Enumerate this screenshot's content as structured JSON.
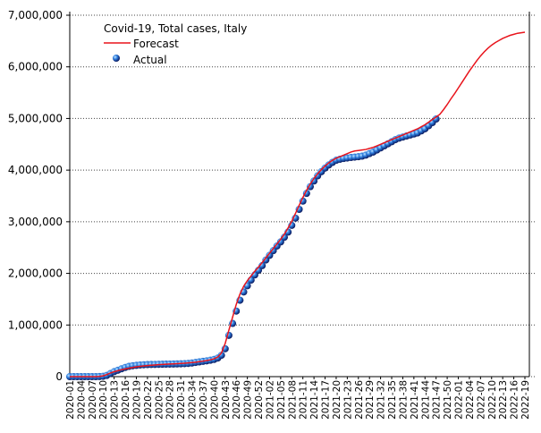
{
  "chart_data": {
    "type": "line",
    "title": "Covid-19, Total cases, Italy",
    "categories": [
      "2020-01",
      null,
      null,
      "2020-04",
      null,
      null,
      "2020-07",
      null,
      null,
      "2020-10",
      null,
      null,
      "2020-13",
      null,
      null,
      "2020-16",
      null,
      null,
      "2020-19",
      null,
      null,
      "2020-22",
      null,
      null,
      "2020-25",
      null,
      null,
      "2020-28",
      null,
      null,
      "2020-31",
      null,
      null,
      "2020-34",
      null,
      null,
      "2020-37",
      null,
      null,
      "2020-40",
      null,
      null,
      "2020-43",
      null,
      null,
      "2020-46",
      null,
      null,
      "2020-49",
      null,
      null,
      "2020-52",
      null,
      null,
      "2021-02",
      null,
      null,
      "2021-05",
      null,
      null,
      "2021-08",
      null,
      null,
      "2021-11",
      null,
      null,
      "2021-14",
      null,
      null,
      "2021-17",
      null,
      null,
      "2021-20",
      null,
      null,
      "2021-23",
      null,
      null,
      "2021-26",
      null,
      null,
      "2021-29",
      null,
      null,
      "2021-32",
      null,
      null,
      "2021-35",
      null,
      null,
      "2021-38",
      null,
      null,
      "2021-41",
      null,
      null,
      "2021-44",
      null,
      null,
      "2021-47",
      null,
      null,
      "2021-50",
      null,
      null,
      "2022-01",
      null,
      null,
      "2022-04",
      null,
      null,
      "2022-07",
      null,
      null,
      "2022-10",
      null,
      null,
      "2022-13",
      null,
      null,
      "2022-16",
      null,
      null,
      "2022-19"
    ],
    "series": [
      {
        "name": "Forecast",
        "color": "#e8141c",
        "style": "line",
        "values": [
          0,
          0,
          0,
          0,
          0,
          0,
          0,
          0,
          5000,
          15000,
          40000,
          70000,
          95000,
          115000,
          135000,
          150000,
          165000,
          178000,
          190000,
          200000,
          208000,
          215000,
          221000,
          226000,
          231000,
          236000,
          240000,
          244000,
          248000,
          252000,
          256000,
          261000,
          266000,
          272000,
          280000,
          290000,
          300000,
          312000,
          326000,
          345000,
          380000,
          460000,
          640000,
          900000,
          1150000,
          1400000,
          1600000,
          1750000,
          1860000,
          1950000,
          2040000,
          2120000,
          2210000,
          2300000,
          2390000,
          2480000,
          2570000,
          2660000,
          2760000,
          2880000,
          3010000,
          3160000,
          3320000,
          3470000,
          3610000,
          3730000,
          3840000,
          3930000,
          4010000,
          4080000,
          4140000,
          4190000,
          4230000,
          4260000,
          4290000,
          4320000,
          4350000,
          4370000,
          4380000,
          4390000,
          4400000,
          4420000,
          4440000,
          4470000,
          4500000,
          4530000,
          4560000,
          4590000,
          4620000,
          4650000,
          4680000,
          4710000,
          4740000,
          4770000,
          4800000,
          4840000,
          4880000,
          4930000,
          4980000,
          5030000,
          5080000,
          5170000,
          5270000,
          5380000,
          5480000,
          5590000,
          5700000,
          5810000,
          5920000,
          6020000,
          6120000,
          6210000,
          6290000,
          6360000,
          6420000,
          6470000,
          6510000,
          6550000,
          6580000,
          6610000,
          6630000,
          6650000,
          6660000,
          6670000
        ]
      },
      {
        "name": "Actual",
        "color": "#1f5fd0",
        "style": "dots",
        "values": [
          0,
          0,
          0,
          0,
          0,
          0,
          0,
          0,
          1700,
          7000,
          24000,
          60000,
          97000,
          124000,
          152000,
          178000,
          199000,
          211000,
          219000,
          226000,
          230000,
          233000,
          235000,
          237000,
          239000,
          240000,
          242000,
          243000,
          245000,
          247000,
          249000,
          252000,
          256000,
          264000,
          276000,
          286000,
          296000,
          306000,
          318000,
          333000,
          360000,
          414000,
          540000,
          800000,
          1030000,
          1270000,
          1480000,
          1640000,
          1760000,
          1870000,
          1970000,
          2060000,
          2150000,
          2260000,
          2350000,
          2440000,
          2530000,
          2610000,
          2700000,
          2800000,
          2930000,
          3070000,
          3240000,
          3400000,
          3550000,
          3680000,
          3790000,
          3890000,
          3970000,
          4040000,
          4100000,
          4150000,
          4190000,
          4210000,
          4225000,
          4235000,
          4245000,
          4252000,
          4260000,
          4270000,
          4290000,
          4320000,
          4350000,
          4390000,
          4430000,
          4470000,
          4510000,
          4550000,
          4590000,
          4620000,
          4640000,
          4660000,
          4680000,
          4700000,
          4720000,
          4760000,
          4800000,
          4860000,
          4920000,
          4990000,
          null,
          null,
          null,
          null,
          null,
          null,
          null,
          null,
          null,
          null,
          null,
          null,
          null,
          null,
          null,
          null,
          null,
          null,
          null,
          null,
          null,
          null,
          null,
          null
        ]
      }
    ],
    "ylim": [
      0,
      7000000
    ],
    "yticks": [
      0,
      {
        "value": 1000000,
        "label": "1,000,000"
      },
      {
        "value": 2000000,
        "label": "2,000,000"
      },
      {
        "value": 3000000,
        "label": "3,000,000"
      },
      {
        "value": 4000000,
        "label": "4,000,000"
      },
      {
        "value": 5000000,
        "label": "5,000,000"
      },
      {
        "value": 6000000,
        "label": "6,000,000"
      },
      {
        "value": 7000000,
        "label": "7,000,000"
      }
    ],
    "grid": true,
    "legend": "upper left"
  }
}
